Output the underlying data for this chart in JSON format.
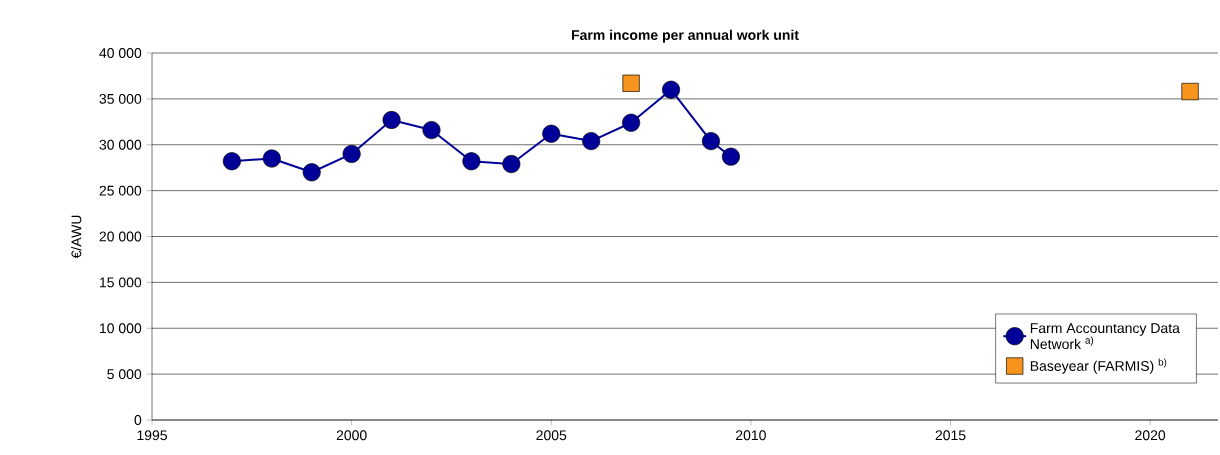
{
  "chart_data": {
    "type": "line",
    "title": "Farm income per annual work unit",
    "ylabel": "€/AWU",
    "xlim": [
      1995,
      2021.7
    ],
    "xticks": [
      1995,
      2000,
      2005,
      2010,
      2015,
      2020
    ],
    "ylim": [
      0,
      40000
    ],
    "yticks": [
      0,
      {
        "value": 5000,
        "label": "5 000"
      },
      {
        "value": 10000,
        "label": "10 000"
      },
      {
        "value": 15000,
        "label": "15 000"
      },
      {
        "value": 20000,
        "label": "20 000"
      },
      {
        "value": 25000,
        "label": "25 000"
      },
      {
        "value": 30000,
        "label": "30 000"
      },
      {
        "value": 35000,
        "label": "35 000"
      },
      {
        "value": 40000,
        "label": "40 000"
      }
    ],
    "grid": "y",
    "legend": "bottom right",
    "series": [
      {
        "name": "Farm Accountancy Data Network $^{a)}$",
        "marker": "circle",
        "color": "#000099",
        "x": [
          1997,
          1998,
          1999,
          2000,
          2001,
          2002,
          2003,
          2004,
          2005,
          2006,
          2007,
          2008,
          2009,
          2009.5
        ],
        "values": [
          28200,
          28500,
          27000,
          29000,
          32700,
          31600,
          28200,
          27900,
          31200,
          30400,
          32400,
          36000,
          30400,
          28700
        ]
      },
      {
        "name": "Baseyear (FARMIS) $^{b)}$",
        "type": "scatter",
        "marker": "square",
        "color": "#f7941d",
        "x": [
          2007,
          2021
        ],
        "values": [
          36700,
          35800
        ]
      }
    ]
  }
}
